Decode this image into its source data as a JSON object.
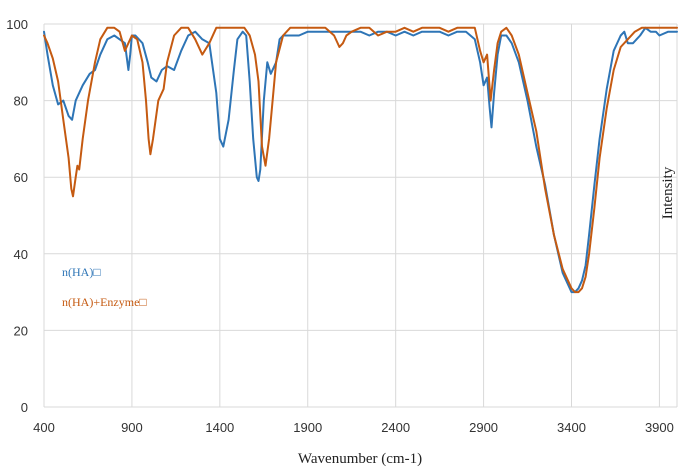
{
  "chart_data": {
    "type": "line",
    "title": "",
    "xlabel": "Wavenumber (cm-1)",
    "ylabel": "Intensity",
    "xlim": [
      400,
      4000
    ],
    "ylim": [
      0,
      100
    ],
    "xticks": [
      400,
      900,
      1400,
      1900,
      2400,
      2900,
      3400,
      3900
    ],
    "yticks": [
      0,
      20,
      40,
      60,
      80,
      100
    ],
    "grid": true,
    "legend_position": "left",
    "series": [
      {
        "name": "n(HA)□",
        "color": "#2e75b6",
        "x": [
          400,
          420,
          450,
          480,
          510,
          540,
          560,
          580,
          620,
          660,
          690,
          720,
          760,
          800,
          830,
          860,
          880,
          890,
          900,
          920,
          960,
          990,
          1010,
          1040,
          1070,
          1100,
          1140,
          1180,
          1220,
          1260,
          1300,
          1340,
          1380,
          1400,
          1420,
          1450,
          1480,
          1500,
          1530,
          1550,
          1570,
          1590,
          1610,
          1620,
          1630,
          1650,
          1670,
          1690,
          1720,
          1740,
          1760,
          1800,
          1850,
          1900,
          1950,
          2000,
          2050,
          2100,
          2150,
          2200,
          2250,
          2300,
          2350,
          2400,
          2450,
          2500,
          2550,
          2600,
          2650,
          2700,
          2750,
          2800,
          2850,
          2880,
          2900,
          2920,
          2935,
          2945,
          2960,
          2980,
          3000,
          3030,
          3060,
          3100,
          3150,
          3200,
          3250,
          3300,
          3350,
          3400,
          3420,
          3440,
          3460,
          3480,
          3500,
          3530,
          3560,
          3600,
          3640,
          3680,
          3700,
          3720,
          3750,
          3790,
          3820,
          3850,
          3880,
          3900,
          3950,
          4000
        ],
        "y": [
          98,
          92,
          84,
          79,
          80,
          76,
          75,
          80,
          84,
          87,
          88,
          92,
          96,
          97,
          96,
          95,
          88,
          92,
          97,
          97,
          95,
          90,
          86,
          85,
          88,
          89,
          88,
          93,
          97,
          98,
          96,
          95,
          82,
          70,
          68,
          75,
          88,
          96,
          98,
          97,
          85,
          70,
          60,
          59,
          62,
          80,
          90,
          87,
          90,
          96,
          97,
          97,
          97,
          98,
          98,
          98,
          98,
          98,
          98,
          98,
          97,
          98,
          98,
          97,
          98,
          97,
          98,
          98,
          98,
          97,
          98,
          98,
          96,
          90,
          84,
          86,
          78,
          73,
          82,
          92,
          97,
          97,
          95,
          90,
          80,
          68,
          58,
          45,
          35,
          30,
          30,
          31,
          33,
          37,
          45,
          58,
          70,
          83,
          93,
          97,
          98,
          95,
          95,
          97,
          99,
          98,
          98,
          97,
          98,
          98
        ]
      },
      {
        "name": "n(HA)+Enzyme□",
        "color": "#c55a11",
        "x": [
          400,
          420,
          450,
          480,
          510,
          540,
          555,
          565,
          580,
          590,
          600,
          620,
          650,
          690,
          720,
          760,
          800,
          830,
          860,
          900,
          930,
          960,
          980,
          995,
          1005,
          1020,
          1050,
          1080,
          1100,
          1140,
          1180,
          1220,
          1260,
          1300,
          1340,
          1380,
          1420,
          1460,
          1500,
          1540,
          1570,
          1600,
          1620,
          1640,
          1660,
          1680,
          1700,
          1720,
          1760,
          1800,
          1850,
          1900,
          1950,
          2000,
          2050,
          2080,
          2100,
          2120,
          2150,
          2200,
          2250,
          2300,
          2350,
          2400,
          2450,
          2500,
          2550,
          2600,
          2650,
          2700,
          2750,
          2800,
          2850,
          2880,
          2900,
          2920,
          2940,
          2960,
          2980,
          3000,
          3030,
          3060,
          3100,
          3150,
          3200,
          3250,
          3300,
          3350,
          3400,
          3420,
          3440,
          3460,
          3480,
          3500,
          3530,
          3560,
          3600,
          3640,
          3680,
          3720,
          3760,
          3800,
          3850,
          3900,
          3950,
          4000
        ],
        "y": [
          97,
          95,
          91,
          85,
          75,
          65,
          57,
          55,
          60,
          63,
          62,
          70,
          80,
          90,
          96,
          99,
          99,
          98,
          93,
          97,
          96,
          90,
          80,
          70,
          66,
          70,
          80,
          83,
          90,
          97,
          99,
          99,
          96,
          92,
          95,
          99,
          99,
          99,
          99,
          99,
          97,
          92,
          85,
          68,
          63,
          70,
          80,
          90,
          97,
          99,
          99,
          99,
          99,
          99,
          97,
          94,
          95,
          97,
          98,
          99,
          99,
          97,
          98,
          98,
          99,
          98,
          99,
          99,
          99,
          98,
          99,
          99,
          99,
          93,
          90,
          92,
          80,
          88,
          95,
          98,
          99,
          97,
          92,
          82,
          72,
          57,
          45,
          36,
          31,
          30,
          30,
          31,
          34,
          40,
          52,
          65,
          78,
          88,
          94,
          96,
          98,
          99,
          99,
          99,
          99,
          99
        ]
      }
    ]
  }
}
